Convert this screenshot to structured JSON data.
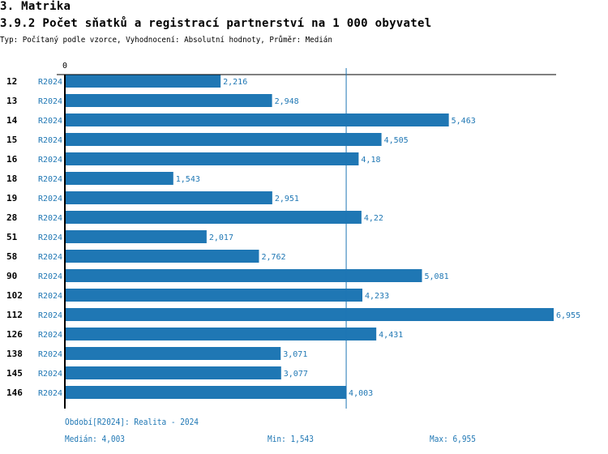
{
  "header": {
    "section": "3. Matrika",
    "title": "3.9.2 Počet sňatků a registrací partnerství na 1 000 obyvatel",
    "subtitle": "Typ: Počítaný podle vzorce, Vyhodnocení: Absolutní hodnoty, Průměr: Medián"
  },
  "chart_data": {
    "type": "bar",
    "orientation": "horizontal",
    "axis_zero_label": "0",
    "categories": [
      "12",
      "13",
      "14",
      "15",
      "16",
      "18",
      "19",
      "28",
      "51",
      "58",
      "90",
      "102",
      "112",
      "126",
      "138",
      "145",
      "146"
    ],
    "period_label": "R2024",
    "values": [
      2.216,
      2.948,
      5.463,
      4.505,
      4.18,
      1.543,
      2.951,
      4.22,
      2.017,
      2.762,
      5.081,
      4.233,
      6.955,
      4.431,
      3.071,
      3.077,
      4.003
    ],
    "value_labels": [
      "2,216",
      "2,948",
      "5,463",
      "4,505",
      "4,18",
      "1,543",
      "2,951",
      "4,22",
      "2,017",
      "2,762",
      "5,081",
      "4,233",
      "6,955",
      "4,431",
      "3,071",
      "3,077",
      "4,003"
    ],
    "median": 4.003,
    "xlim": [
      0,
      6.955
    ],
    "bar_color": "#1f77b4"
  },
  "footer": {
    "period": "Období[R2024]: Realita - 2024",
    "median": "Medián: 4,003",
    "min": "Min: 1,543",
    "max": "Max: 6,955"
  }
}
